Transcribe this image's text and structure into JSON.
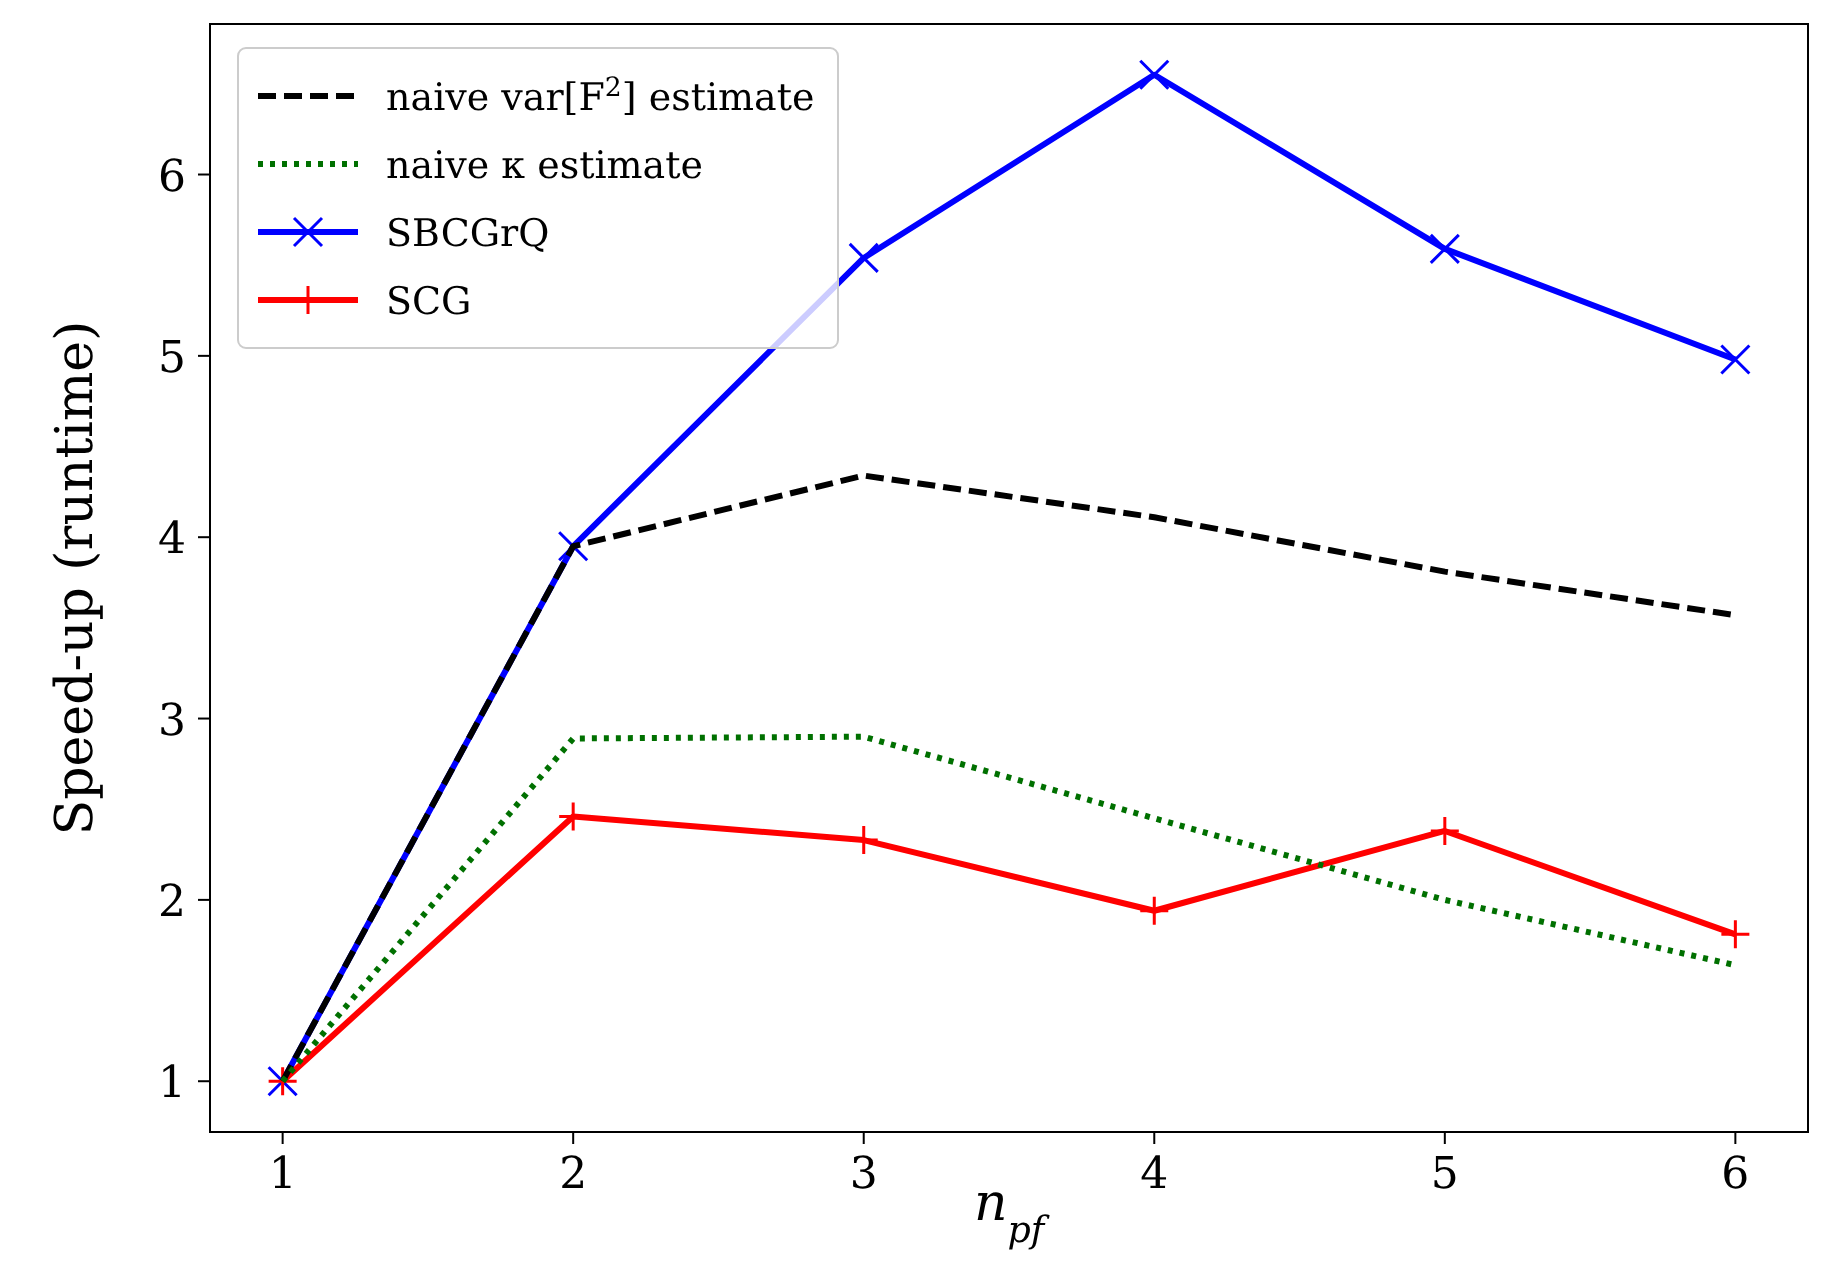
{
  "chart_data": {
    "type": "line",
    "xlabel": "n$_{pf}$",
    "ylabel": "Speed-up (runtime)",
    "x": [
      1,
      2,
      3,
      4,
      5,
      6
    ],
    "xlim": [
      0.75,
      6.25
    ],
    "xticks": [
      1,
      2,
      3,
      4,
      5,
      6
    ],
    "ylim": [
      0.72,
      6.83
    ],
    "yticks": [
      1,
      2,
      3,
      4,
      5,
      6
    ],
    "grid": false,
    "legend": "top left",
    "series": [
      {
        "name": "naive var[F$^{2}$] estimate",
        "color": "#000000",
        "line_style": "dashed",
        "marker": "none",
        "values": [
          1,
          3.95,
          4.34,
          4.11,
          3.81,
          3.57
        ]
      },
      {
        "name": "naive κ estimate",
        "color": "#007000",
        "line_style": "dotted",
        "marker": "none",
        "values": [
          1,
          2.89,
          2.9,
          2.45,
          2.0,
          1.64
        ]
      },
      {
        "name": "SBCGrQ",
        "color": "#0000ff",
        "line_style": "solid",
        "marker": "x",
        "values": [
          1,
          3.95,
          5.54,
          6.55,
          5.59,
          4.98
        ]
      },
      {
        "name": "SCG",
        "color": "#ff0000",
        "line_style": "solid",
        "marker": "cross",
        "values": [
          1,
          2.46,
          2.33,
          1.94,
          2.38,
          1.81
        ]
      }
    ]
  }
}
